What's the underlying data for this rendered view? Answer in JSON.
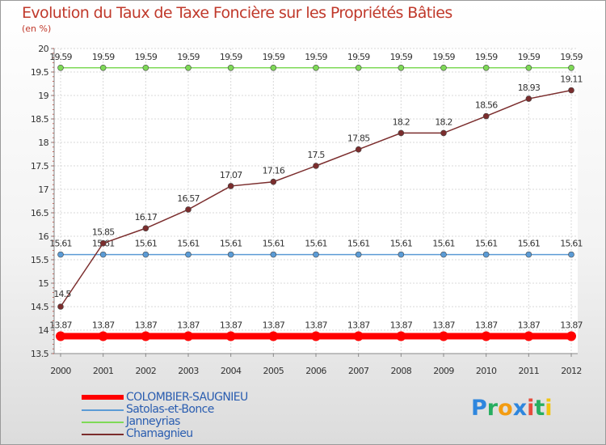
{
  "chart_data": {
    "type": "line",
    "title": "Evolution du Taux de Taxe Foncière sur les Propriétés Bâties",
    "subtitle": "(en %)",
    "x": [
      2000,
      2001,
      2002,
      2003,
      2004,
      2005,
      2006,
      2007,
      2008,
      2009,
      2010,
      2011,
      2012
    ],
    "ylim": [
      13.5,
      20
    ],
    "yticks": [
      13.5,
      14,
      14.5,
      15,
      15.5,
      16,
      16.5,
      17,
      17.5,
      18,
      18.5,
      19,
      19.5,
      20
    ],
    "grid": true,
    "legend_position": "bottom-left",
    "series": [
      {
        "name": "COLOMBIER-SAUGNIEU",
        "color": "#ff0000",
        "values": [
          13.87,
          13.87,
          13.87,
          13.87,
          13.87,
          13.87,
          13.87,
          13.87,
          13.87,
          13.87,
          13.87,
          13.87,
          13.87
        ]
      },
      {
        "name": "Satolas-et-Bonce",
        "color": "#5b9bd5",
        "values": [
          15.61,
          15.61,
          15.61,
          15.61,
          15.61,
          15.61,
          15.61,
          15.61,
          15.61,
          15.61,
          15.61,
          15.61,
          15.61
        ]
      },
      {
        "name": "Janneyrias",
        "color": "#7ed957",
        "values": [
          19.59,
          19.59,
          19.59,
          19.59,
          19.59,
          19.59,
          19.59,
          19.59,
          19.59,
          19.59,
          19.59,
          19.59,
          19.59
        ]
      },
      {
        "name": "Chamagnieu",
        "color": "#7b2d2d",
        "values": [
          14.5,
          15.85,
          16.17,
          16.57,
          17.07,
          17.16,
          17.5,
          17.85,
          18.2,
          18.2,
          18.56,
          18.93,
          19.11
        ]
      }
    ]
  },
  "brand": {
    "letters": [
      "P",
      "r",
      "o",
      "x",
      "i",
      "t",
      "i"
    ],
    "colors": [
      "#2e86de",
      "#27ae60",
      "#f39c12",
      "#2e86de",
      "#e74c3c",
      "#27ae60",
      "#f1c40f"
    ]
  }
}
